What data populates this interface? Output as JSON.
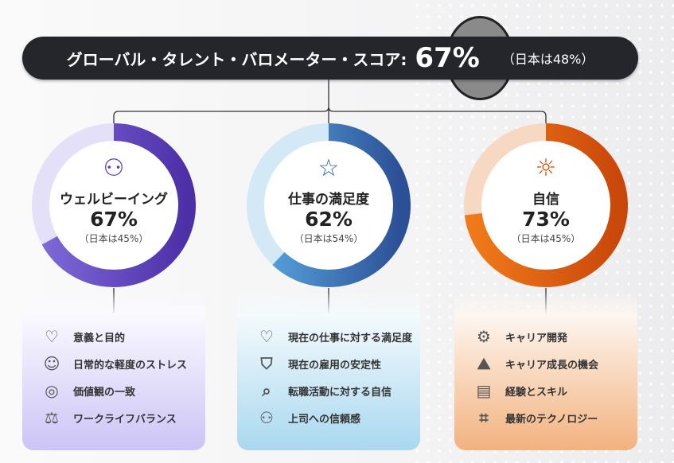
{
  "header": {
    "title": "グローバル・タレント・バロメーター・スコア:",
    "score": "67%",
    "japan": "（日本は48%）"
  },
  "colors": {
    "banner": "#24262b",
    "wellbeing": "#5b3fbf",
    "satisfaction": "#2f63a8",
    "confidence": "#d9560b"
  },
  "pillars": [
    {
      "label": "ウェルビーイング",
      "score": "67%",
      "value": 67,
      "japan": "（日本は45%）",
      "icon": "people-hands-icon",
      "ring": [
        "#7f6ad8",
        "#4d2fa8"
      ],
      "track": "#e4e0f7",
      "iconColor": "#5b3fbf",
      "card": [
        "#faf9ff",
        "#ccc4f6"
      ],
      "items": [
        {
          "icon": "heart-hand-icon",
          "label": "意義と目的"
        },
        {
          "icon": "head-lotus-icon",
          "label": "日常的な軽度のストレス"
        },
        {
          "icon": "target-icon",
          "label": "価値観の一致"
        },
        {
          "icon": "scale-icon",
          "label": "ワークライフバランス"
        }
      ]
    },
    {
      "label": "仕事の満足度",
      "score": "62%",
      "value": 62,
      "japan": "（日本は54%）",
      "icon": "person-stars-icon",
      "ring": [
        "#5aa8e0",
        "#2c4f96"
      ],
      "track": "#d4e9f6",
      "iconColor": "#2f63a8",
      "card": [
        "#f4fafd",
        "#a9d8ef"
      ],
      "items": [
        {
          "icon": "briefcase-heart-icon",
          "label": "現在の仕事に対する満足度"
        },
        {
          "icon": "shield-briefcase-icon",
          "label": "現在の雇用の安定性"
        },
        {
          "icon": "briefcase-search-icon",
          "label": "転職活動に対する自信"
        },
        {
          "icon": "team-icon",
          "label": "上司への信頼感"
        }
      ]
    },
    {
      "label": "自信",
      "score": "73%",
      "value": 73,
      "japan": "（日本は45%）",
      "icon": "person-sun-icon",
      "ring": [
        "#f07a1a",
        "#c9470a"
      ],
      "track": "#f7d9c3",
      "iconColor": "#d9560b",
      "card": [
        "#fdf6f0",
        "#f3b27e"
      ],
      "items": [
        {
          "icon": "gear-laptop-icon",
          "label": "キャリア開発"
        },
        {
          "icon": "climber-icon",
          "label": "キャリア成長の機会"
        },
        {
          "icon": "clipboard-plan-icon",
          "label": "経験とスキル"
        },
        {
          "icon": "tech-frame-icon",
          "label": "最新のテクノロジー"
        }
      ]
    }
  ]
}
